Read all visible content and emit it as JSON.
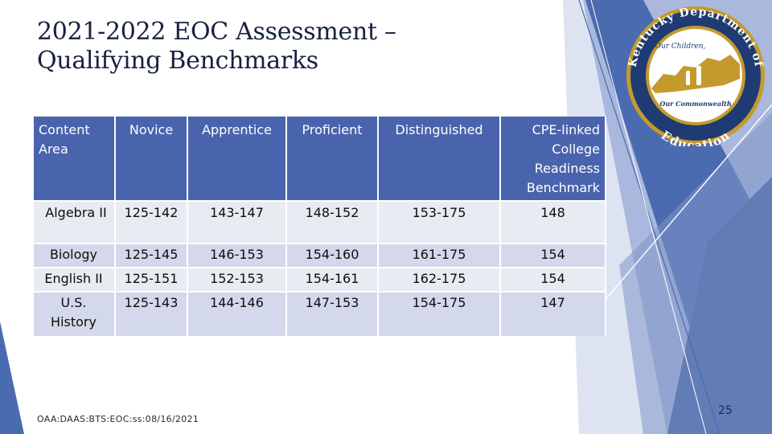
{
  "title": {
    "line1": "2021-2022 EOC Assessment –",
    "line2": "Qualifying Benchmarks"
  },
  "table": {
    "headers": [
      "Content Area",
      "Novice",
      "Apprentice",
      "Proficient",
      "Distinguished",
      "CPE-linked College Readiness Benchmark"
    ],
    "rows": [
      {
        "subject": "Algebra II",
        "novice": "125-142",
        "apprentice": "143-147",
        "proficient": "148-152",
        "distinguished": "153-175",
        "benchmark": "148"
      },
      {
        "subject": "Biology",
        "novice": "125-145",
        "apprentice": "146-153",
        "proficient": "154-160",
        "distinguished": "161-175",
        "benchmark": "154"
      },
      {
        "subject": "English II",
        "novice": "125-151",
        "apprentice": "152-153",
        "proficient": "154-161",
        "distinguished": "162-175",
        "benchmark": "154"
      },
      {
        "subject": "U.S. History",
        "novice": "125-143",
        "apprentice": "144-146",
        "proficient": "147-153",
        "distinguished": "154-175",
        "benchmark": "147"
      }
    ]
  },
  "logo": {
    "text_top": "Kentucky Department of",
    "text_our_children": "Our Children,",
    "text_our_commonwealth": "Our Commonwealth",
    "text_bottom": "Education"
  },
  "footer": {
    "code": "OAA:DAAS:BTS:EOC:ss:08/16/2021",
    "page_number": "25"
  },
  "colors": {
    "header_fill": "#4a63ad",
    "row_light": "#e9ebf3",
    "row_dark": "#d3d8ea",
    "title_text": "#17213f",
    "deco_blue": "#4b6bb0",
    "logo_gold": "#c49a2c",
    "logo_navy": "#1f3b73"
  }
}
